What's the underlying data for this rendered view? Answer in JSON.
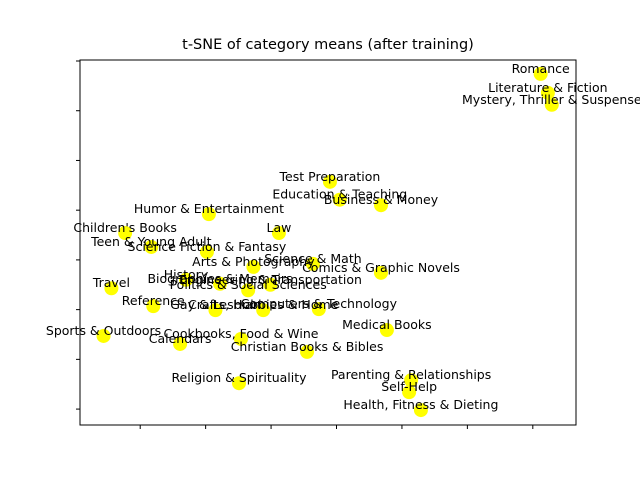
{
  "chart_data": {
    "type": "scatter",
    "title": "t-SNE of category means (after training)",
    "point_labels": [
      "Romance",
      "Literature & Fiction",
      "Mystery, Thriller & Suspense",
      "Test Preparation",
      "Education & Teaching",
      "Business & Money",
      "Humor & Entertainment",
      "Children's Books",
      "Law",
      "Teen & Young Adult",
      "Science Fiction & Fantasy",
      "Arts & Photography",
      "Science & Math",
      "Comics & Graphic Novels",
      "Travel",
      "History",
      "Biographies & Memoirs",
      "Engineering & Transportation",
      "Politics & Social Sciences",
      "Reference",
      "Gay & Lesbian",
      "Crafts, Hobbies & Home",
      "Computers & Technology",
      "Medical Books",
      "Sports & Outdoors",
      "Cookbooks, Food & Wine",
      "Calendars",
      "Christian Books & Bibles",
      "Religion & Spirituality",
      "Parenting & Relationships",
      "Self-Help",
      "Health, Fitness & Dieting"
    ],
    "x": [
      31.2,
      32.3,
      32.9,
      -1.0,
      0.5,
      6.8,
      -19.5,
      -32.3,
      -8.8,
      -28.3,
      -19.8,
      -12.7,
      -3.6,
      6.8,
      -34.4,
      -23.0,
      -17.8,
      -10.1,
      -13.5,
      -28.0,
      -18.5,
      -11.2,
      -2.7,
      7.7,
      -35.6,
      -14.6,
      -23.9,
      -4.5,
      -14.9,
      11.4,
      11.1,
      12.9
    ],
    "values": [
      37.4,
      33.6,
      31.2,
      15.7,
      12.1,
      11.0,
      9.2,
      5.4,
      5.4,
      2.6,
      1.6,
      -1.4,
      -0.8,
      -2.6,
      -5.7,
      -4.0,
      -4.8,
      -5.0,
      -6.1,
      -9.3,
      -10.1,
      -10.1,
      -9.9,
      -14.1,
      -15.3,
      -15.9,
      -16.9,
      -18.5,
      -24.8,
      -24.2,
      -26.6,
      -30.2
    ],
    "color": "#ffff00",
    "xlim": [
      -39.2,
      36.6
    ],
    "ylim": [
      -33.2,
      40.2
    ],
    "xticks": [
      -30,
      -20,
      -10,
      0,
      10,
      20,
      30
    ],
    "yticks": [
      -30,
      -20,
      -10,
      0,
      10,
      20,
      30,
      40
    ]
  }
}
